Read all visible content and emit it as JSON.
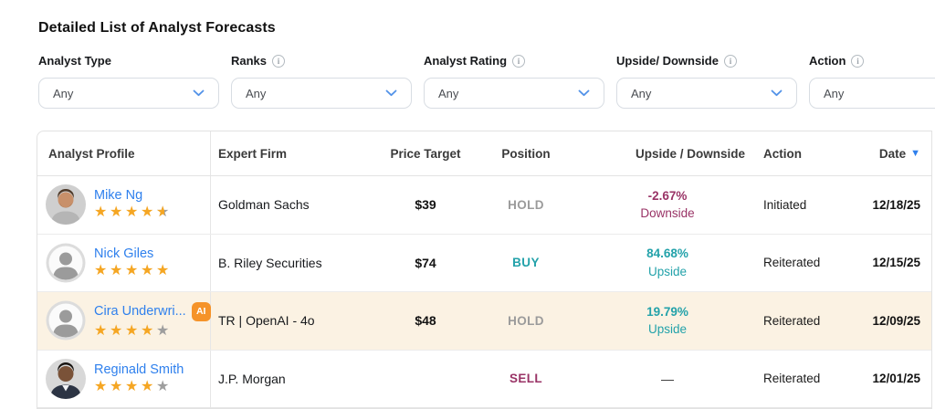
{
  "page": {
    "title": "Detailed List of Analyst Forecasts"
  },
  "colors": {
    "link_blue": "#2f80ed",
    "star_filled": "#f5a623",
    "star_empty": "#9e9e9e",
    "buy_teal": "#23a2aa",
    "sell_maroon": "#993366",
    "hold_gray": "#9b9b9b",
    "upside_teal": "#23a2aa",
    "downside_maroon": "#993366",
    "highlight_row": "#fbf2e3",
    "ai_badge_orange": "#f59329",
    "sort_triangle_blue": "#2f80ed"
  },
  "filters": [
    {
      "label": "Analyst Type",
      "has_info": false,
      "value": "Any"
    },
    {
      "label": "Ranks",
      "has_info": true,
      "value": "Any"
    },
    {
      "label": "Analyst Rating",
      "has_info": true,
      "value": "Any"
    },
    {
      "label": "Upside/ Downside",
      "has_info": true,
      "value": "Any"
    },
    {
      "label": "Action",
      "has_info": true,
      "value": "Any"
    }
  ],
  "table": {
    "headers": [
      "Analyst Profile",
      "Expert Firm",
      "Price Target",
      "Position",
      "Upside / Downside",
      "Action",
      "Date"
    ],
    "sort": {
      "column": "Date",
      "direction": "desc",
      "indicator": "▼"
    },
    "rows": [
      {
        "name": "Mike Ng",
        "badge": "",
        "rating": 4.5,
        "avatar": "photo-bearded-man",
        "firm": "Goldman Sachs",
        "price_target": "$39",
        "position": "HOLD",
        "change_pct": "-2.67%",
        "change_label": "Downside",
        "change_dir": "down",
        "action": "Initiated",
        "date": "12/18/25",
        "highlighted": false
      },
      {
        "name": "Nick Giles",
        "badge": "",
        "rating": 5,
        "avatar": "placeholder",
        "firm": "B. Riley Securities",
        "price_target": "$74",
        "position": "BUY",
        "change_pct": "84.68%",
        "change_label": "Upside",
        "change_dir": "up",
        "action": "Reiterated",
        "date": "12/15/25",
        "highlighted": false
      },
      {
        "name": "Cira Underwri...",
        "badge": "AI",
        "rating": 4,
        "avatar": "placeholder",
        "firm": "TR | OpenAI - 4o",
        "price_target": "$48",
        "position": "HOLD",
        "change_pct": "19.79%",
        "change_label": "Upside",
        "change_dir": "up",
        "action": "Reiterated",
        "date": "12/09/25",
        "highlighted": true
      },
      {
        "name": "Reginald Smith",
        "badge": "",
        "rating": 4,
        "avatar": "photo-suit-man",
        "firm": "J.P. Morgan",
        "price_target": "",
        "position": "SELL",
        "change_pct": "—",
        "change_label": "",
        "change_dir": "none",
        "action": "Reiterated",
        "date": "12/01/25",
        "highlighted": false
      }
    ]
  }
}
